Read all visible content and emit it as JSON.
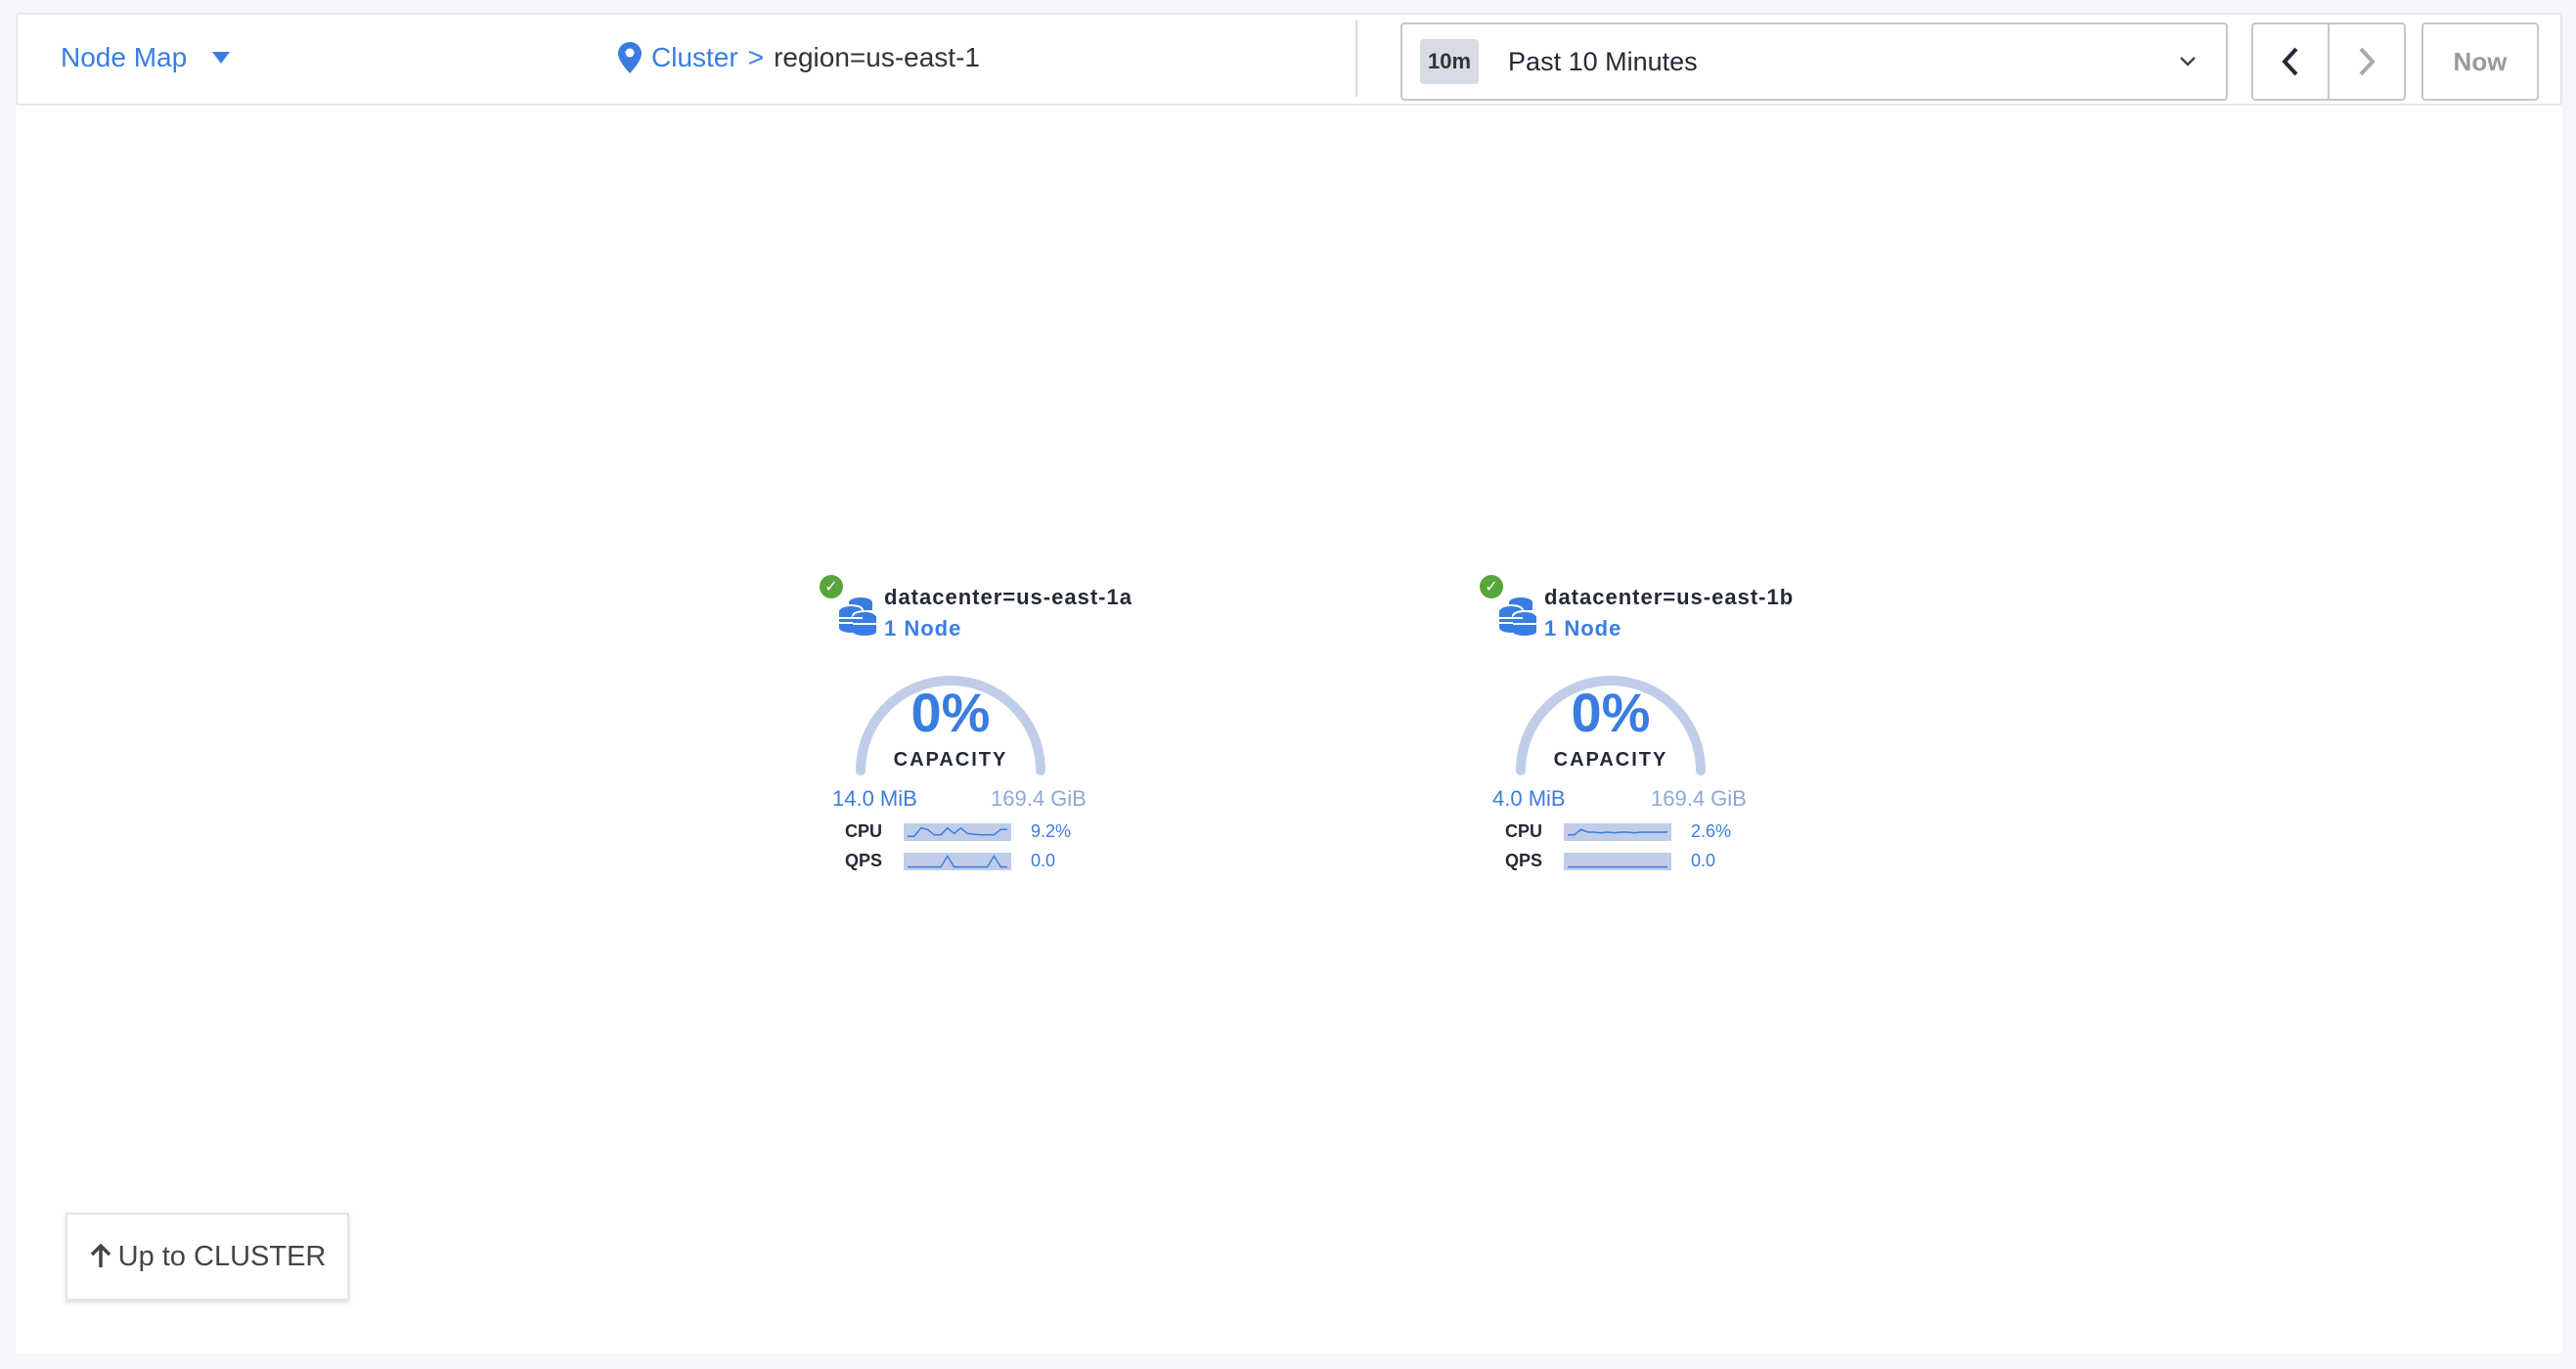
{
  "header": {
    "view_label": "Node Map",
    "breadcrumb_root": "Cluster",
    "breadcrumb_sep": ">",
    "breadcrumb_current": "region=us-east-1",
    "time_badge": "10m",
    "time_label": "Past 10 Minutes",
    "now_label": "Now"
  },
  "colors": {
    "accent": "#3a7de1",
    "healthy": "#5aa53b",
    "gauge_track": "#bfcde9"
  },
  "datacenters": [
    {
      "name": "datacenter=us-east-1a",
      "nodes": "1 Node",
      "capacity_pct": "0%",
      "capacity_label": "CAPACITY",
      "used": "14.0 MiB",
      "total": "169.4 GiB",
      "cpu_label": "CPU",
      "cpu_value": "9.2%",
      "qps_label": "QPS",
      "qps_value": "0.0",
      "cpu_spark": [
        0.2,
        0.2,
        0.8,
        0.7,
        0.3,
        0.3,
        0.8,
        0.4,
        0.8,
        0.4,
        0.35,
        0.3,
        0.3,
        0.3,
        0.7,
        0.7
      ],
      "qps_spark": [
        0.1,
        0.1,
        0.1,
        0.1,
        0.1,
        0.1,
        0.9,
        0.1,
        0.1,
        0.1,
        0.1,
        0.1,
        0.1,
        0.9,
        0.1,
        0.1
      ]
    },
    {
      "name": "datacenter=us-east-1b",
      "nodes": "1 Node",
      "capacity_pct": "0%",
      "capacity_label": "CAPACITY",
      "used": "4.0 MiB",
      "total": "169.4 GiB",
      "cpu_label": "CPU",
      "cpu_value": "2.6%",
      "qps_label": "QPS",
      "qps_value": "0.0",
      "cpu_spark": [
        0.3,
        0.3,
        0.7,
        0.5,
        0.5,
        0.45,
        0.5,
        0.45,
        0.5,
        0.5,
        0.45,
        0.5,
        0.5,
        0.5,
        0.5,
        0.5
      ],
      "qps_spark": [
        0.1,
        0.1,
        0.1,
        0.1,
        0.1,
        0.1,
        0.1,
        0.1,
        0.1,
        0.1,
        0.1,
        0.1,
        0.1,
        0.1,
        0.1,
        0.1
      ]
    }
  ],
  "footer": {
    "up_label": "Up to CLUSTER"
  }
}
